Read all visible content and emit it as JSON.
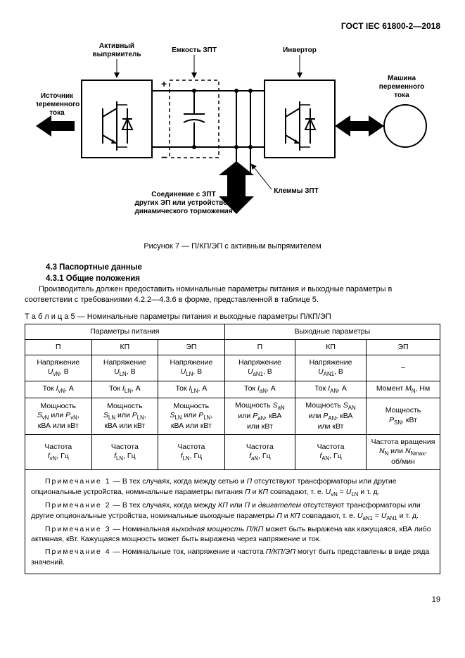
{
  "doc_header": "ГОСТ IEC 61800-2—2018",
  "diagram": {
    "labels": {
      "active_rect": "Активный\nвыпрямитель",
      "dc_link": "Емкость ЗПТ",
      "inverter": "Инвертор",
      "source": "Источник\nпеременного\nтока",
      "machine": "Машина\nпеременного\nтока",
      "dc_bus_conn": "Соединение с ЗПТ\nдругих ЭП или устройством\nдинамического торможения",
      "terminals": "Клеммы ЗПТ",
      "plus": "+",
      "minus": "−"
    },
    "colors": {
      "stroke": "#000000",
      "fill": "#ffffff",
      "text": "#000000"
    }
  },
  "caption": "Рисунок 7 — П/КП/ЭП с активным выпрямителем",
  "section_4_3": "4.3 Паспортные данные",
  "section_4_3_1": "4.3.1 Общие положения",
  "para1": "Производитель должен предоставить номинальные параметры питания и выходные параметры в соответствии с требованиями 4.2.2—4.3.6 в форме, представленной в таблице 5.",
  "table_title": "Т а б л и ц а  5 — Номинальные параметры питания и выходные параметры П/КП/ЭП",
  "table": {
    "head_in": "Параметры питания",
    "head_out": "Выходные параметры",
    "cols": [
      "П",
      "КП",
      "ЭП",
      "П",
      "КП",
      "ЭП"
    ],
    "rows": [
      [
        "Напряжение<br><span class='it'>U</span><sub>vN</sub>, В",
        "Напряжение<br><span class='it'>U</span><sub>LN</sub>, В",
        "Напряжение<br><span class='it'>U</span><sub>LN</sub>, В",
        "Напряжение<br><span class='it'>U</span><sub>aN1</sub>, В",
        "Напряжение<br><span class='it'>U</span><sub>AN1</sub>, В",
        "–"
      ],
      [
        "Ток <span class='it'>I</span><sub>vN</sub>, А",
        "Ток <span class='it'>I</span><sub>LN</sub>, А",
        "Ток <span class='it'>I</span><sub>LN</sub>, А",
        "Ток <span class='it'>I</span><sub>aN</sub>, А",
        "Ток <span class='it'>I</span><sub>AN</sub>, А",
        "Момент <span class='it'>M</span><sub>N</sub>, Нм"
      ],
      [
        "Мощность<br><span class='it'>S</span><sub>vN</sub> или <span class='it'>P</span><sub>vN</sub>,<br>кВА или кВт",
        "Мощность<br><span class='it'>S</span><sub>LN</sub> или <span class='it'>P</span><sub>LN</sub>,<br>кВА или кВт",
        "Мощность<br><span class='it'>S</span><sub>LN</sub> или <span class='it'>P</span><sub>LN</sub>,<br>кВА или кВт",
        "Мощность <span class='it'>S</span><sub>aN</sub><br>или <span class='it'>P</span><sub>aN</sub>, кВА<br>или кВт",
        "Мощность <span class='it'>S</span><sub>AN</sub><br>или <span class='it'>P</span><sub>AN</sub>, кВА<br>или кВт",
        "Мощность<br><span class='it'>P</span><sub>SN</sub>, кВт"
      ],
      [
        "Частота<br><span class='it'>f</span><sub>vN</sub>, Гц",
        "Частота<br><span class='it'>f</span><sub>LN</sub>, Гц",
        "Частота<br><span class='it'>f</span><sub>LN</sub>, Гц",
        "Частота<br><span class='it'>f</span><sub>aN</sub>, Гц",
        "Частота<br><span class='it'>f</span><sub>AN</sub>, Гц",
        "Частота вращения<br><span class='it'>N</span><sub>N</sub> или <span class='it'>N</span><sub>Nmax</sub>,<br>об/мин"
      ]
    ]
  },
  "notes": [
    "<span class='lead'>Примечание 1</span> — В тех случаях, когда между сетью и <span class='it'>П</span> отсутствуют трансформаторы или другие опциональные устройства, номинальные параметры питания <span class='it'>П</span> и <span class='it'>КП</span> совпадают, т. е. <span class='it'>U</span><sub>vN</sub> = <span class='it'>U</span><sub>LN</sub> и т. д.",
    "<span class='lead'>Примечание 2</span> — В тех случаях, когда между <span class='it'>КП</span> или <span class='it'>П</span> и <span class='it'>двигателем</span> отсутствуют трансформаторы или другие опциональные устройства, номинальные выходные параметры <span class='it'>П</span> и <span class='it'>КП</span> совпадают, т. е. <span class='it'>U</span><sub>aN1</sub> = <span class='it'>U</span><sub>AN1</sub> и т. д.",
    "<span class='lead'>Примечание 3</span> — Номинальная <span class='it'>выходная мощность П/КП</span> может быть выражена как кажущаяся, кВА либо активная, кВт. Кажущаяся мощность может быть выражена через напряжение и ток.",
    "<span class='lead'>Примечание 4</span> — Номинальные ток, напряжение и частота <span class='it'>П/КП/ЭП</span> могут быть представлены в виде ряда значений."
  ],
  "page_number": "19"
}
